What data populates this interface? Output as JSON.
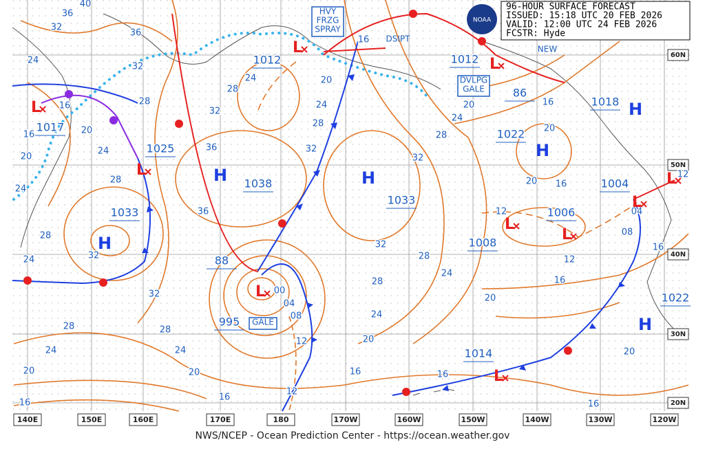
{
  "header": {
    "lines": [
      "96-HOUR SURFACE FORECAST",
      "ISSUED: 15:18 UTC 20 FEB 2026",
      "VALID:  12:00 UTC 24 FEB 2026",
      "FCSTR:  Hyde"
    ]
  },
  "logo": "NOAA",
  "footer": "NWS/NCEP - Ocean Prediction Center - https://ocean.weather.gov",
  "longitudes": [
    "140E",
    "150E",
    "160E",
    "170E",
    "180",
    "170W",
    "160W",
    "150W",
    "140W",
    "130W",
    "120W"
  ],
  "latitudes": [
    "60N",
    "50N",
    "40N",
    "30N",
    "20N"
  ],
  "pressure_labels": [
    "1017",
    "1025",
    "1033",
    "1038",
    "1012",
    "1033",
    "1012",
    "86",
    "1018",
    "1022",
    "1004",
    "1006",
    "1008",
    "88",
    "995",
    "1022",
    "1014"
  ],
  "isobar_labels": [
    "36",
    "40",
    "32",
    "36",
    "24",
    "32",
    "28",
    "16",
    "20",
    "16",
    "24",
    "20",
    "24",
    "28",
    "28",
    "24",
    "32",
    "32",
    "28",
    "24",
    "28",
    "24",
    "20",
    "20",
    "16",
    "16",
    "36",
    "36",
    "32",
    "28",
    "24",
    "20",
    "24",
    "28",
    "32",
    "32",
    "28",
    "24",
    "20",
    "16",
    "20",
    "20",
    "16",
    "12",
    "12",
    "08",
    "04",
    "16",
    "28",
    "32",
    "28",
    "24",
    "24",
    "20",
    "20",
    "16",
    "16",
    "16",
    "20",
    "16",
    "12",
    "00",
    "04",
    "08",
    "12",
    "12",
    "16"
  ],
  "high_symbols": [
    "H",
    "H",
    "H",
    "H",
    "H",
    "H"
  ],
  "low_symbols": [
    "L",
    "L",
    "L",
    "L",
    "L",
    "L",
    "L",
    "L",
    "L",
    "L"
  ],
  "annotations": {
    "freezing_spray": [
      "HVY",
      "FRZG",
      "SPRAY"
    ],
    "dissipating": "DSIPT",
    "new": "NEW",
    "developing_gale": [
      "DVLPG",
      "GALE"
    ],
    "gale": "GALE"
  }
}
